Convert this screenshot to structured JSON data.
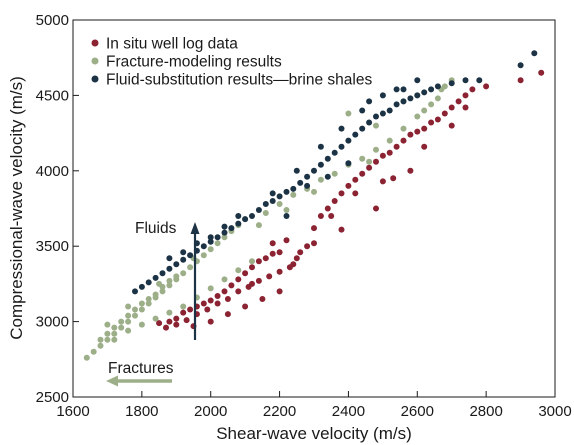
{
  "chart_data": {
    "type": "scatter",
    "xlabel": "Shear-wave velocity (m/s)",
    "ylabel": "Compressional-wave velocity (m/s)",
    "xlim": [
      1600,
      3000
    ],
    "ylim": [
      2500,
      5000
    ],
    "xticks": [
      1600,
      1800,
      2000,
      2200,
      2400,
      2600,
      2800,
      3000
    ],
    "yticks": [
      2500,
      3000,
      3500,
      4000,
      4500,
      5000
    ],
    "xtick_labels": [
      "1600",
      "1800",
      "2000",
      "2200",
      "2400",
      "2600",
      "2800",
      "3000"
    ],
    "ytick_labels": [
      "2500",
      "3000",
      "3500",
      "4000",
      "4500",
      "5000"
    ],
    "grid": false,
    "legend_position": "top-left",
    "series": [
      {
        "name": "In situ well log data",
        "color": "#8b2332",
        "points": [
          [
            1850,
            2990
          ],
          [
            1880,
            3000
          ],
          [
            1900,
            3020
          ],
          [
            1920,
            3060
          ],
          [
            1940,
            3080
          ],
          [
            1960,
            3100
          ],
          [
            1980,
            3120
          ],
          [
            2000,
            3140
          ],
          [
            2020,
            3170
          ],
          [
            2040,
            3200
          ],
          [
            2060,
            3240
          ],
          [
            2080,
            3280
          ],
          [
            2100,
            3320
          ],
          [
            2120,
            3360
          ],
          [
            2140,
            3400
          ],
          [
            2160,
            3420
          ],
          [
            2180,
            3450
          ],
          [
            2200,
            3460
          ],
          [
            1870,
            2960
          ],
          [
            1900,
            2980
          ],
          [
            1930,
            3010
          ],
          [
            1960,
            3050
          ],
          [
            1990,
            3080
          ],
          [
            2020,
            3120
          ],
          [
            2050,
            3150
          ],
          [
            2080,
            3200
          ],
          [
            2110,
            3230
          ],
          [
            2140,
            3270
          ],
          [
            2170,
            3300
          ],
          [
            2200,
            3330
          ],
          [
            2230,
            3360
          ],
          [
            2250,
            3420
          ],
          [
            2260,
            3460
          ],
          [
            2280,
            3500
          ],
          [
            2300,
            3620
          ],
          [
            2320,
            3700
          ],
          [
            2340,
            3750
          ],
          [
            2360,
            3800
          ],
          [
            2380,
            3850
          ],
          [
            2400,
            3900
          ],
          [
            2420,
            3940
          ],
          [
            2440,
            3980
          ],
          [
            2460,
            4020
          ],
          [
            2480,
            4060
          ],
          [
            2500,
            4100
          ],
          [
            2520,
            4120
          ],
          [
            2540,
            4160
          ],
          [
            2560,
            4200
          ],
          [
            2580,
            4240
          ],
          [
            2600,
            4260
          ],
          [
            2620,
            4280
          ],
          [
            2640,
            4320
          ],
          [
            2660,
            4340
          ],
          [
            2680,
            4380
          ],
          [
            2700,
            4420
          ],
          [
            2720,
            4460
          ],
          [
            2740,
            4500
          ],
          [
            2760,
            4540
          ],
          [
            2380,
            3610
          ],
          [
            2480,
            3750
          ],
          [
            2530,
            3950
          ],
          [
            2580,
            4000
          ],
          [
            2900,
            4600
          ],
          [
            2960,
            4650
          ],
          [
            2200,
            3200
          ],
          [
            2150,
            3150
          ],
          [
            2100,
            3100
          ],
          [
            2050,
            3050
          ],
          [
            2000,
            3000
          ],
          [
            1950,
            2970
          ],
          [
            2240,
            3380
          ],
          [
            2180,
            3520
          ],
          [
            2120,
            3250
          ],
          [
            2220,
            3540
          ],
          [
            2300,
            3520
          ],
          [
            2350,
            3700
          ],
          [
            2420,
            3850
          ],
          [
            2500,
            3930
          ],
          [
            2620,
            4160
          ],
          [
            2700,
            4300
          ],
          [
            2740,
            4420
          ],
          [
            2800,
            4560
          ]
        ]
      },
      {
        "name": "Fracture-modeling results",
        "color": "#9caf88",
        "points": [
          [
            1640,
            2760
          ],
          [
            1660,
            2800
          ],
          [
            1680,
            2840
          ],
          [
            1700,
            2880
          ],
          [
            1720,
            2920
          ],
          [
            1740,
            2960
          ],
          [
            1760,
            3000
          ],
          [
            1780,
            3040
          ],
          [
            1800,
            3080
          ],
          [
            1820,
            3120
          ],
          [
            1840,
            3160
          ],
          [
            1860,
            3200
          ],
          [
            1880,
            3240
          ],
          [
            1900,
            3280
          ],
          [
            1920,
            3320
          ],
          [
            1940,
            3360
          ],
          [
            1960,
            3400
          ],
          [
            1980,
            3440
          ],
          [
            2000,
            3480
          ],
          [
            2020,
            3520
          ],
          [
            2040,
            3560
          ],
          [
            2060,
            3600
          ],
          [
            2080,
            3640
          ],
          [
            2100,
            3680
          ],
          [
            1680,
            2880
          ],
          [
            1700,
            2920
          ],
          [
            1720,
            2960
          ],
          [
            1740,
            3000
          ],
          [
            1760,
            3040
          ],
          [
            1780,
            3080
          ],
          [
            1800,
            3120
          ],
          [
            1820,
            3150
          ],
          [
            1840,
            3180
          ],
          [
            1860,
            3230
          ],
          [
            1880,
            3270
          ],
          [
            1900,
            3300
          ],
          [
            1720,
            2880
          ],
          [
            1760,
            2940
          ],
          [
            1800,
            2980
          ],
          [
            1840,
            3020
          ],
          [
            1880,
            3060
          ],
          [
            1920,
            3100
          ],
          [
            1960,
            3160
          ],
          [
            2000,
            3220
          ],
          [
            2040,
            3280
          ],
          [
            2080,
            3340
          ],
          [
            2120,
            3400
          ],
          [
            2160,
            3720
          ],
          [
            2200,
            3780
          ],
          [
            2240,
            3840
          ],
          [
            2280,
            3880
          ],
          [
            2320,
            3940
          ],
          [
            2360,
            3980
          ],
          [
            2400,
            4040
          ],
          [
            2440,
            4080
          ],
          [
            2480,
            4140
          ],
          [
            2520,
            4200
          ],
          [
            2560,
            4280
          ],
          [
            2600,
            4360
          ],
          [
            2620,
            4400
          ],
          [
            2640,
            4440
          ],
          [
            2660,
            4480
          ],
          [
            2670,
            4540
          ],
          [
            2680,
            4560
          ],
          [
            2700,
            4600
          ],
          [
            2400,
            4380
          ],
          [
            2480,
            4300
          ],
          [
            2560,
            4460
          ],
          [
            2600,
            4500
          ],
          [
            2460,
            4060
          ],
          [
            2300,
            3860
          ],
          [
            2220,
            3740
          ],
          [
            2140,
            3640
          ],
          [
            1950,
            3420
          ],
          [
            1850,
            3250
          ],
          [
            1760,
            3100
          ],
          [
            1700,
            2980
          ]
        ]
      },
      {
        "name": "Fluid-substitution results—brine shales",
        "color": "#1c3346",
        "points": [
          [
            1780,
            3200
          ],
          [
            1800,
            3230
          ],
          [
            1820,
            3260
          ],
          [
            1840,
            3290
          ],
          [
            1860,
            3320
          ],
          [
            1880,
            3350
          ],
          [
            1900,
            3380
          ],
          [
            1920,
            3410
          ],
          [
            1940,
            3440
          ],
          [
            1960,
            3470
          ],
          [
            1980,
            3500
          ],
          [
            2000,
            3530
          ],
          [
            2020,
            3560
          ],
          [
            2040,
            3590
          ],
          [
            2060,
            3620
          ],
          [
            2080,
            3650
          ],
          [
            2100,
            3680
          ],
          [
            2120,
            3700
          ],
          [
            2140,
            3740
          ],
          [
            2160,
            3780
          ],
          [
            2180,
            3800
          ],
          [
            2200,
            3830
          ],
          [
            2220,
            3860
          ],
          [
            2240,
            3880
          ],
          [
            2260,
            3920
          ],
          [
            2280,
            3960
          ],
          [
            2300,
            4000
          ],
          [
            2320,
            4040
          ],
          [
            2340,
            4080
          ],
          [
            2360,
            4120
          ],
          [
            2380,
            4160
          ],
          [
            2400,
            4200
          ],
          [
            2420,
            4240
          ],
          [
            2440,
            4280
          ],
          [
            2460,
            4320
          ],
          [
            2480,
            4360
          ],
          [
            2500,
            4380
          ],
          [
            2520,
            4400
          ],
          [
            2540,
            4440
          ],
          [
            2560,
            4460
          ],
          [
            2580,
            4480
          ],
          [
            2600,
            4500
          ],
          [
            2620,
            4520
          ],
          [
            2640,
            4540
          ],
          [
            2660,
            4560
          ],
          [
            2700,
            4580
          ],
          [
            2740,
            4600
          ],
          [
            2780,
            4600
          ],
          [
            2900,
            4700
          ],
          [
            2940,
            4780
          ],
          [
            2400,
            4050
          ],
          [
            2340,
            3960
          ],
          [
            2280,
            3900
          ],
          [
            2220,
            3700
          ],
          [
            1880,
            3420
          ],
          [
            1920,
            3460
          ],
          [
            1960,
            3520
          ],
          [
            2000,
            3560
          ],
          [
            2040,
            3630
          ],
          [
            2080,
            3700
          ],
          [
            2180,
            3850
          ],
          [
            2250,
            4000
          ],
          [
            2320,
            4160
          ],
          [
            2380,
            4280
          ],
          [
            2440,
            4400
          ],
          [
            2460,
            4460
          ],
          [
            2500,
            4500
          ],
          [
            2540,
            4540
          ],
          [
            2560,
            4540
          ],
          [
            2600,
            4600
          ]
        ]
      }
    ],
    "annotations": [
      {
        "text": "Fluids",
        "arrow": "up"
      },
      {
        "text": "Fractures",
        "arrow": "left"
      }
    ]
  }
}
